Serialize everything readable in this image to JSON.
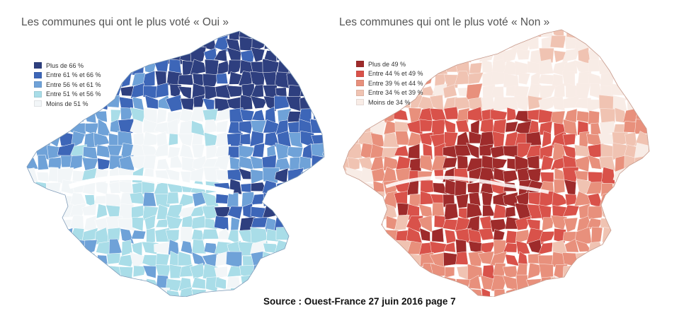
{
  "maps": [
    {
      "id": "oui",
      "title": "Les communes qui ont le plus voté « Oui »",
      "legend": [
        {
          "label": "Plus de 66 %",
          "color": "#2e3f7f"
        },
        {
          "label": "Entre 61 % et 66 %",
          "color": "#3d66b8"
        },
        {
          "label": "Entre 56 % et 61 %",
          "color": "#6fa2d8"
        },
        {
          "label": "Entre 51 % et 56 %",
          "color": "#a9dde8"
        },
        {
          "label": "Moins de 51 %",
          "color": "#f2f6f8"
        }
      ]
    },
    {
      "id": "non",
      "title": "Les communes qui ont le plus voté « Non »",
      "legend": [
        {
          "label": "Plus de 49 %",
          "color": "#9e2b2b"
        },
        {
          "label": "Entre 44 % et 49 %",
          "color": "#d9524a"
        },
        {
          "label": "Entre 39 % et 44 %",
          "color": "#e8907c"
        },
        {
          "label": "Entre 34 % et 39 %",
          "color": "#f0c3b2"
        },
        {
          "label": "Moins de 34 %",
          "color": "#f8ece6"
        }
      ]
    }
  ],
  "source": "Source : Ouest-France 27 juin 2016 page 7"
}
